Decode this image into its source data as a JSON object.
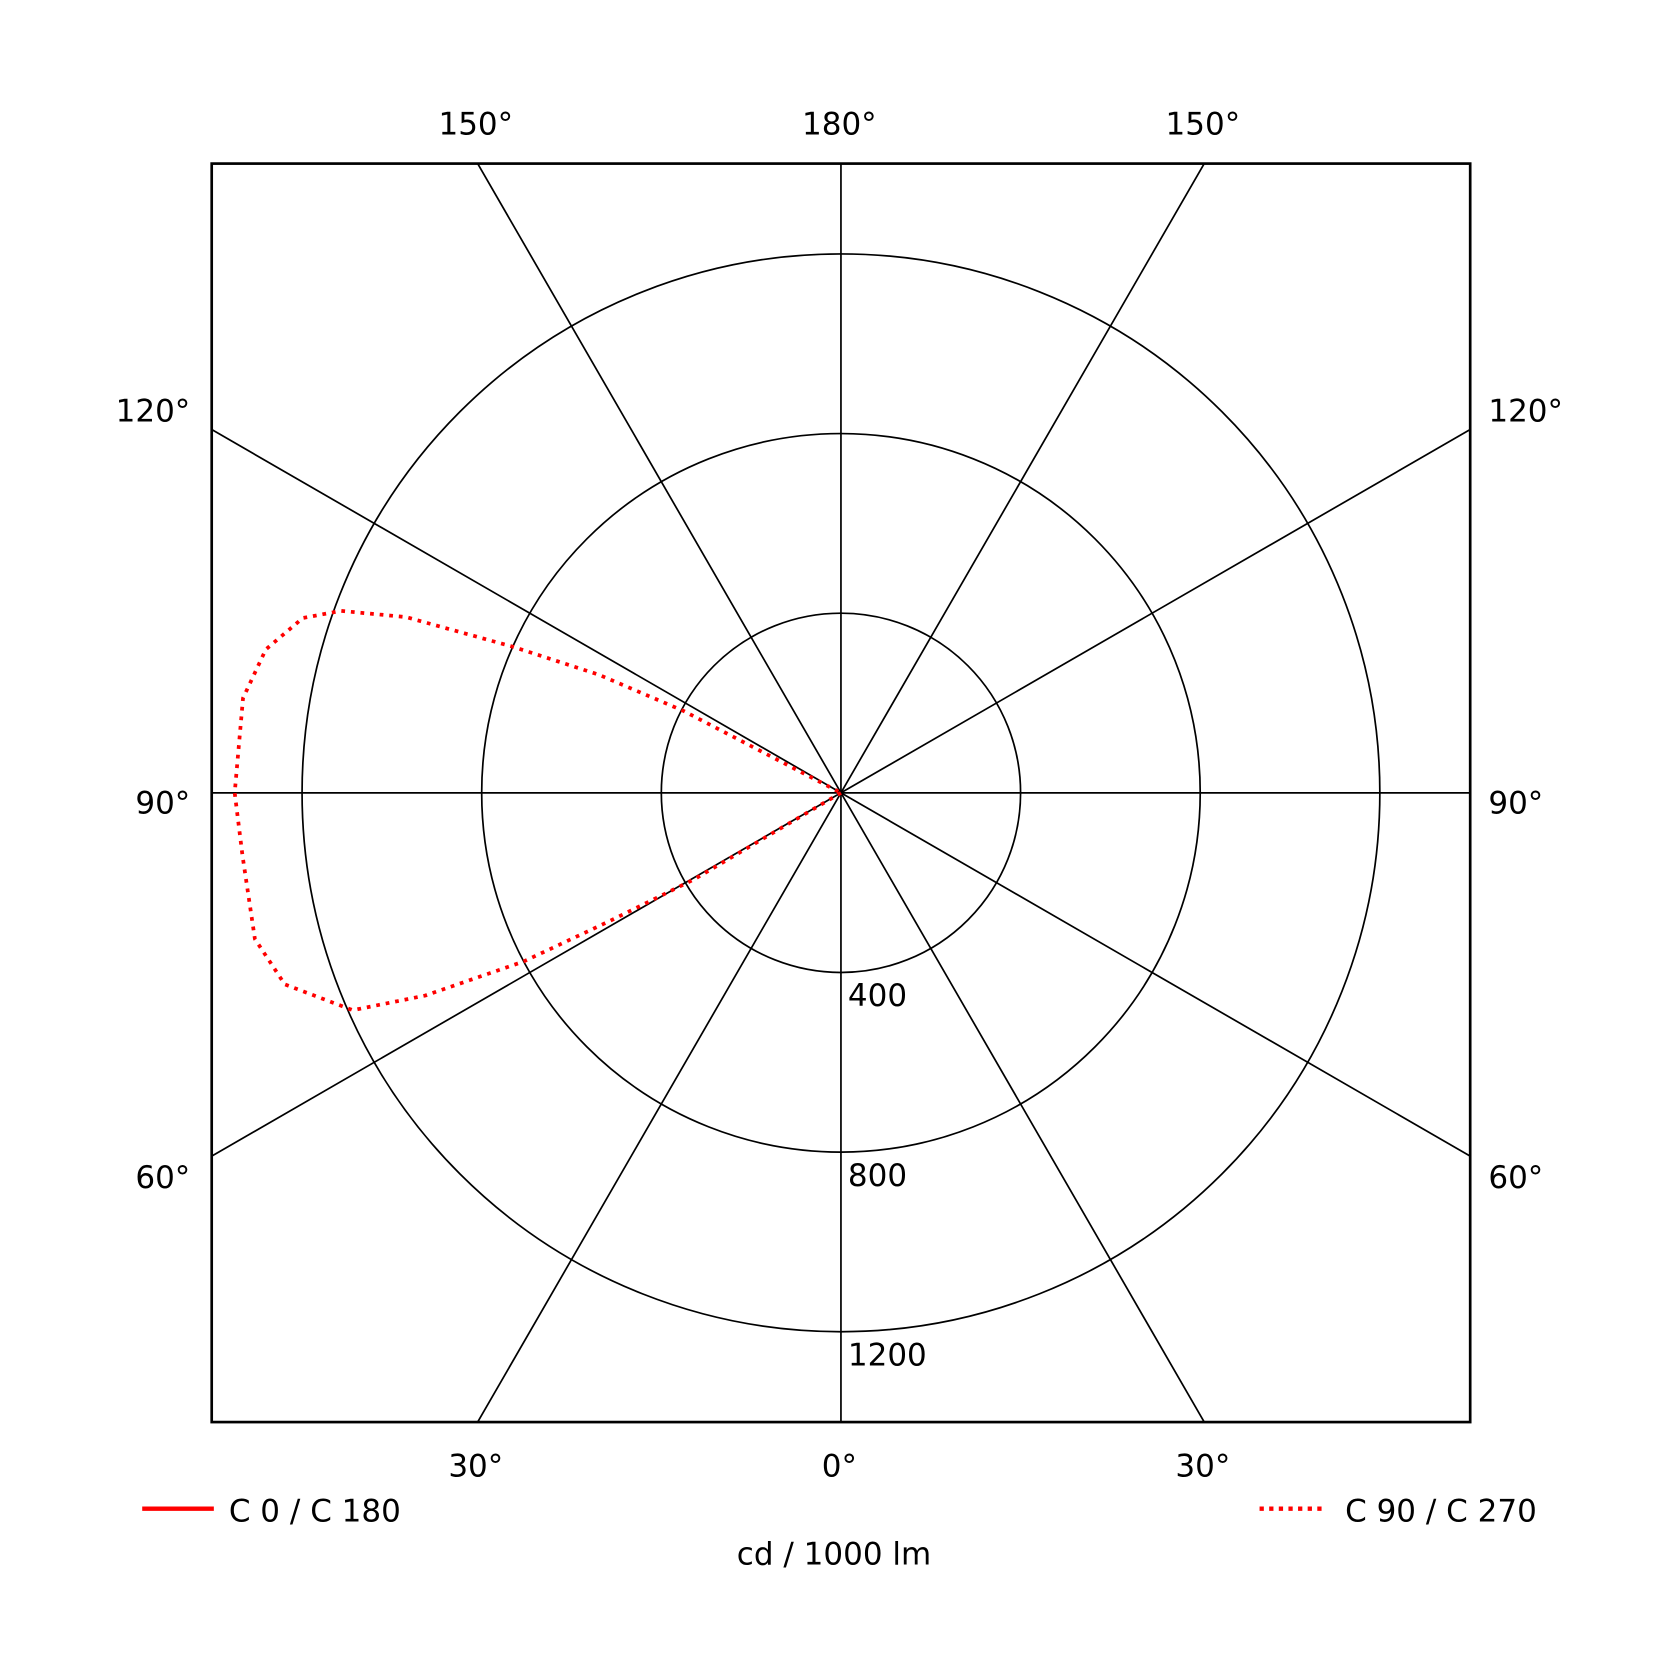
{
  "chart_data": {
    "type": "polar",
    "unit_label": "cd / 1000 lm",
    "radial_ticks": [
      400,
      800,
      1200
    ],
    "radial_tick_labels": [
      "400",
      "800",
      "1200"
    ],
    "rmax": 1400,
    "angle_step_deg": 30,
    "grid": true,
    "angle_labels": {
      "top": [
        "150°",
        "180°",
        "150°"
      ],
      "left": [
        "120°",
        "90°",
        "60°"
      ],
      "right": [
        "120°",
        "90°",
        "60°"
      ],
      "bottom": [
        "30°",
        "0°",
        "30°"
      ]
    },
    "legend": [
      {
        "name": "C 0 / C 180",
        "style": "solid",
        "color": "#ff0000",
        "placement": "bottom-left"
      },
      {
        "name": "C 90 / C 270",
        "style": "dotted",
        "color": "#ff0000",
        "placement": "bottom-right"
      }
    ],
    "series": [
      {
        "name": "C 90 / C 270",
        "style": "dotted",
        "color": "#ff0000",
        "side": "left",
        "points": [
          [
            58,
            0
          ],
          [
            59.5,
            380
          ],
          [
            61,
            590
          ],
          [
            62,
            800
          ],
          [
            64,
            1030
          ],
          [
            66,
            1190
          ],
          [
            71,
            1310
          ],
          [
            76,
            1345
          ],
          [
            84,
            1340
          ],
          [
            90,
            1350
          ],
          [
            99,
            1348
          ],
          [
            104,
            1320
          ],
          [
            108,
            1260
          ],
          [
            110,
            1185
          ],
          [
            112,
            1045
          ],
          [
            114,
            800
          ],
          [
            116,
            600
          ],
          [
            117.5,
            395
          ],
          [
            119,
            0
          ]
        ]
      }
    ]
  }
}
